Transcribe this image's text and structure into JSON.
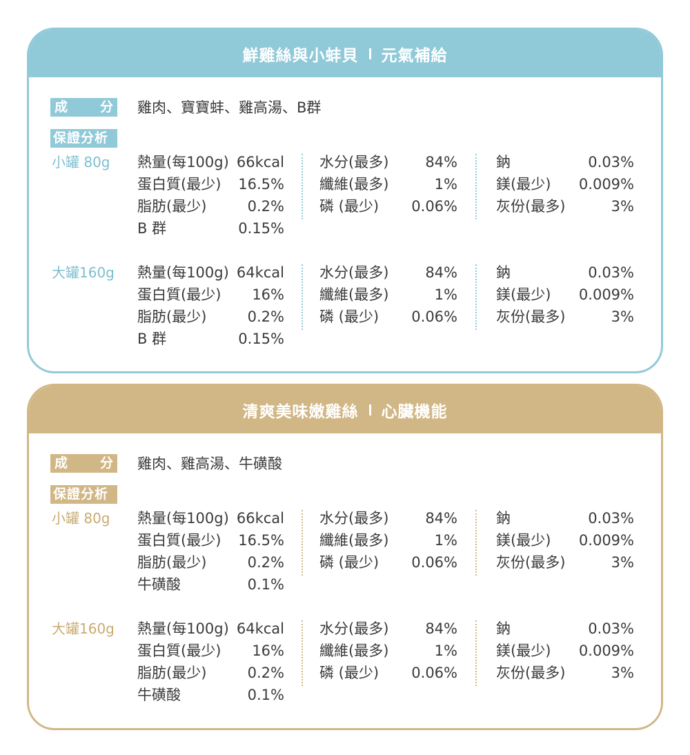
{
  "cards": [
    {
      "title_left": "鮮雞絲與小蚌貝",
      "title_right": "元氣補給",
      "ingredients_tag_left": "成",
      "ingredients_tag_right": "分",
      "ingredients": "雞肉、寶寶蚌、雞高湯、B群",
      "analysis_tag": "保證分析",
      "small": {
        "label": "小罐 80g",
        "col1": [
          {
            "label": "熱量(每100g)",
            "value": "66kcal"
          },
          {
            "label": "蛋白質(最少)",
            "value": "16.5%"
          },
          {
            "label": "脂肪(最少)",
            "value": "0.2%"
          },
          {
            "label": "B 群",
            "value": "0.15%"
          }
        ],
        "col2": [
          {
            "label": "水分(最多)",
            "value": "84%"
          },
          {
            "label": "纖維(最多)",
            "value": "1%"
          },
          {
            "label": "磷 (最少)",
            "value": "0.06%"
          }
        ],
        "col3": [
          {
            "label": "鈉",
            "value": "0.03%"
          },
          {
            "label": "鎂(最少)",
            "value": "0.009%"
          },
          {
            "label": "灰份(最多)",
            "value": "3%"
          }
        ]
      },
      "large": {
        "label": "大罐160g",
        "col1": [
          {
            "label": "熱量(每100g)",
            "value": "64kcal"
          },
          {
            "label": "蛋白質(最少)",
            "value": "16%"
          },
          {
            "label": "脂肪(最少)",
            "value": "0.2%"
          },
          {
            "label": "B 群",
            "value": "0.15%"
          }
        ],
        "col2": [
          {
            "label": "水分(最多)",
            "value": "84%"
          },
          {
            "label": "纖維(最多)",
            "value": "1%"
          },
          {
            "label": "磷 (最少)",
            "value": "0.06%"
          }
        ],
        "col3": [
          {
            "label": "鈉",
            "value": "0.03%"
          },
          {
            "label": "鎂(最少)",
            "value": "0.009%"
          },
          {
            "label": "灰份(最多)",
            "value": "3%"
          }
        ]
      }
    },
    {
      "title_left": "清爽美味嫩雞絲",
      "title_right": "心臟機能",
      "ingredients_tag_left": "成",
      "ingredients_tag_right": "分",
      "ingredients": "雞肉、雞高湯、牛磺酸",
      "analysis_tag": "保證分析",
      "small": {
        "label": "小罐 80g",
        "col1": [
          {
            "label": "熱量(每100g)",
            "value": "66kcal"
          },
          {
            "label": "蛋白質(最少)",
            "value": "16.5%"
          },
          {
            "label": "脂肪(最少)",
            "value": "0.2%"
          },
          {
            "label": "牛磺酸",
            "value": "0.1%"
          }
        ],
        "col2": [
          {
            "label": "水分(最多)",
            "value": "84%"
          },
          {
            "label": "纖維(最多)",
            "value": "1%"
          },
          {
            "label": "磷 (最少)",
            "value": "0.06%"
          }
        ],
        "col3": [
          {
            "label": "鈉",
            "value": "0.03%"
          },
          {
            "label": "鎂(最少)",
            "value": "0.009%"
          },
          {
            "label": "灰份(最多)",
            "value": "3%"
          }
        ]
      },
      "large": {
        "label": "大罐160g",
        "col1": [
          {
            "label": "熱量(每100g)",
            "value": "64kcal"
          },
          {
            "label": "蛋白質(最少)",
            "value": "16%"
          },
          {
            "label": "脂肪(最少)",
            "value": "0.2%"
          },
          {
            "label": "牛磺酸",
            "value": "0.1%"
          }
        ],
        "col2": [
          {
            "label": "水分(最多)",
            "value": "84%"
          },
          {
            "label": "纖維(最多)",
            "value": "1%"
          },
          {
            "label": "磷 (最少)",
            "value": "0.06%"
          }
        ],
        "col3": [
          {
            "label": "鈉",
            "value": "0.03%"
          },
          {
            "label": "鎂(最少)",
            "value": "0.009%"
          },
          {
            "label": "灰份(最多)",
            "value": "3%"
          }
        ]
      }
    }
  ],
  "colors": {
    "blue": "#90c9d8",
    "tan": "#d1b785",
    "text": "#3a3a3a"
  }
}
